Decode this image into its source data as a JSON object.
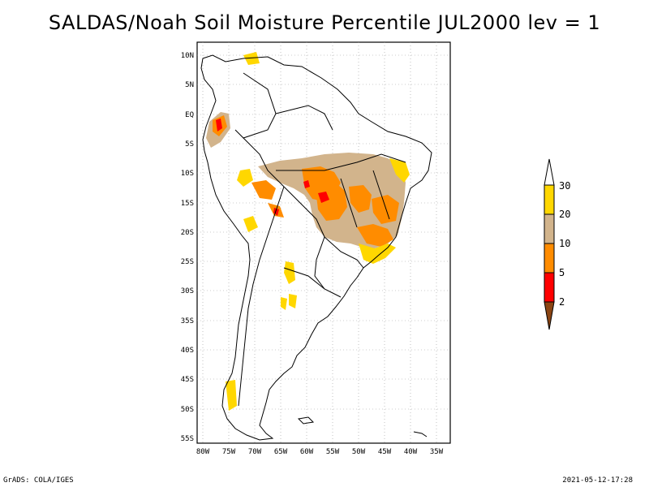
{
  "title": "SALDAS/Noah Soil Moisture Percentile JUL2000 lev = 1",
  "map": {
    "lat_labels": [
      "10N",
      "5N",
      "EQ",
      "5S",
      "10S",
      "15S",
      "20S",
      "25S",
      "30S",
      "35S",
      "40S",
      "45S",
      "50S",
      "55S"
    ],
    "lon_labels": [
      "80W",
      "75W",
      "70W",
      "65W",
      "60W",
      "55W",
      "50W",
      "45W",
      "40W",
      "35W"
    ],
    "lat_range": [
      -56,
      12
    ],
    "lon_range": [
      -81,
      -33
    ]
  },
  "colorbar": {
    "labels": [
      "2",
      "5",
      "10",
      "20",
      "30"
    ],
    "colors": {
      "below_2": "#8b4513",
      "2_5": "#ff0000",
      "5_10": "#ff8c00",
      "10_20": "#d2b48c",
      "20_30": "#ffd700",
      "above_30": "#ffffff"
    }
  },
  "footer": {
    "credit": "GrADS: COLA/IGES",
    "timestamp": "2021-05-12-17:28"
  }
}
